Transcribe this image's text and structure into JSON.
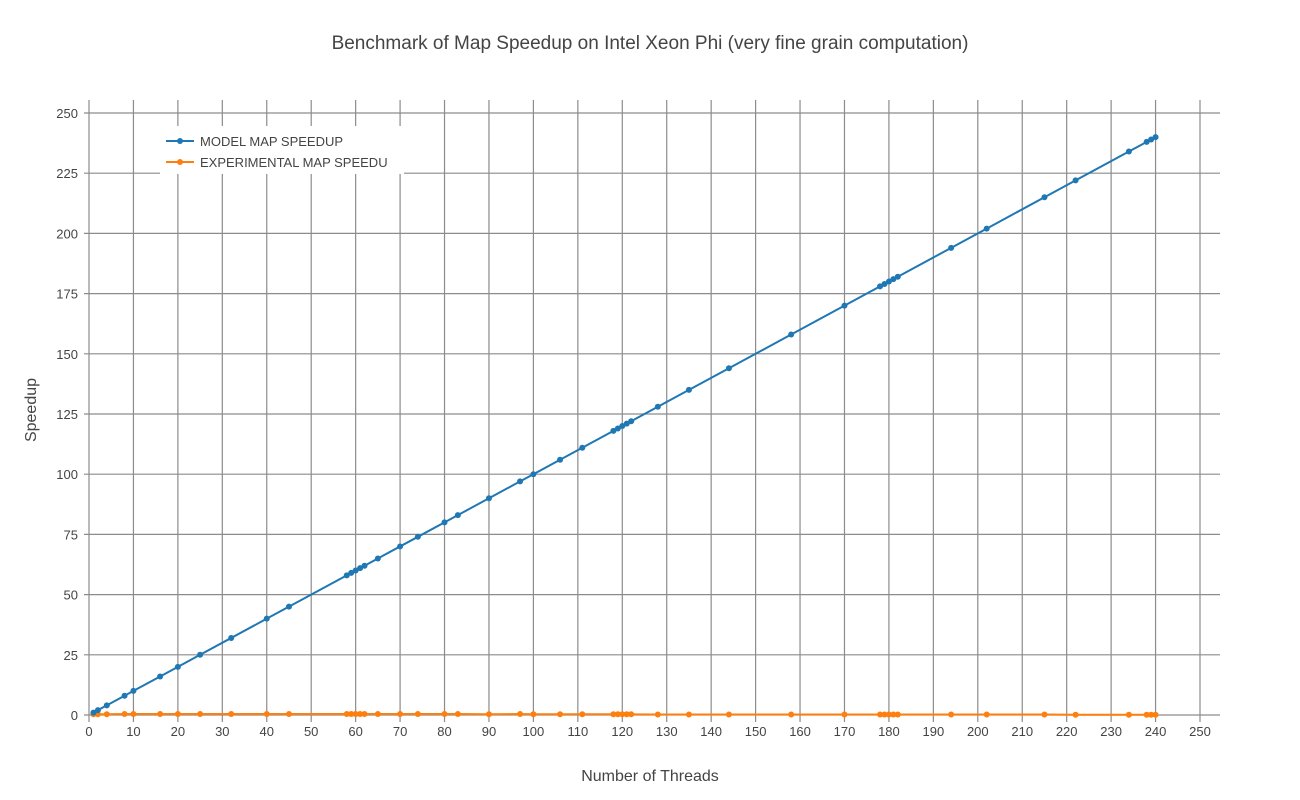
{
  "chart_data": {
    "type": "line",
    "title": "Benchmark of Map Speedup on Intel Xeon Phi (very fine grain computation)",
    "xlabel": "Number of Threads",
    "ylabel": "Speedup",
    "xlim": [
      0,
      250
    ],
    "ylim": [
      0,
      250
    ],
    "x_ticks": [
      "0",
      "10",
      "20",
      "30",
      "40",
      "50",
      "60",
      "70",
      "80",
      "90",
      "100",
      "110",
      "120",
      "130",
      "140",
      "150",
      "160",
      "170",
      "180",
      "190",
      "200",
      "210",
      "220",
      "230",
      "240",
      "250"
    ],
    "y_ticks": [
      "0",
      "25",
      "50",
      "75",
      "100",
      "125",
      "150",
      "175",
      "200",
      "225",
      "250"
    ],
    "grid": true,
    "legend_position": "top-left",
    "x": [
      1,
      2,
      4,
      8,
      10,
      16,
      20,
      25,
      32,
      40,
      45,
      58,
      59,
      60,
      61,
      62,
      65,
      70,
      74,
      80,
      83,
      90,
      97,
      100,
      106,
      111,
      118,
      119,
      120,
      121,
      122,
      128,
      135,
      144,
      158,
      170,
      178,
      179,
      180,
      181,
      182,
      194,
      202,
      215,
      222,
      234,
      238,
      239,
      240
    ],
    "series": [
      {
        "name": "MODEL MAP SPEEDUP",
        "color": "#1f77b4",
        "values": [
          1,
          2,
          4,
          8,
          10,
          16,
          20,
          25,
          32,
          40,
          45,
          58,
          59,
          60,
          61,
          62,
          65,
          70,
          74,
          80,
          83,
          90,
          97,
          100,
          106,
          111,
          118,
          119,
          120,
          121,
          122,
          128,
          135,
          144,
          158,
          170,
          178,
          179,
          180,
          181,
          182,
          194,
          202,
          215,
          222,
          234,
          238,
          239,
          240
        ]
      },
      {
        "name": "EXPERIMENTAL MAP SPEEDU",
        "color": "#ff7f0e",
        "values": [
          0.3,
          0.3,
          0.3,
          0.4,
          0.4,
          0.4,
          0.4,
          0.4,
          0.4,
          0.4,
          0.4,
          0.4,
          0.4,
          0.4,
          0.4,
          0.4,
          0.4,
          0.4,
          0.4,
          0.4,
          0.4,
          0.3,
          0.4,
          0.3,
          0.3,
          0.3,
          0.3,
          0.3,
          0.3,
          0.3,
          0.3,
          0.2,
          0.2,
          0.2,
          0.2,
          0.2,
          0.2,
          0.2,
          0.2,
          0.2,
          0.2,
          0.2,
          0.2,
          0.2,
          0.1,
          0.1,
          0.1,
          0.1,
          0.1
        ]
      }
    ]
  }
}
